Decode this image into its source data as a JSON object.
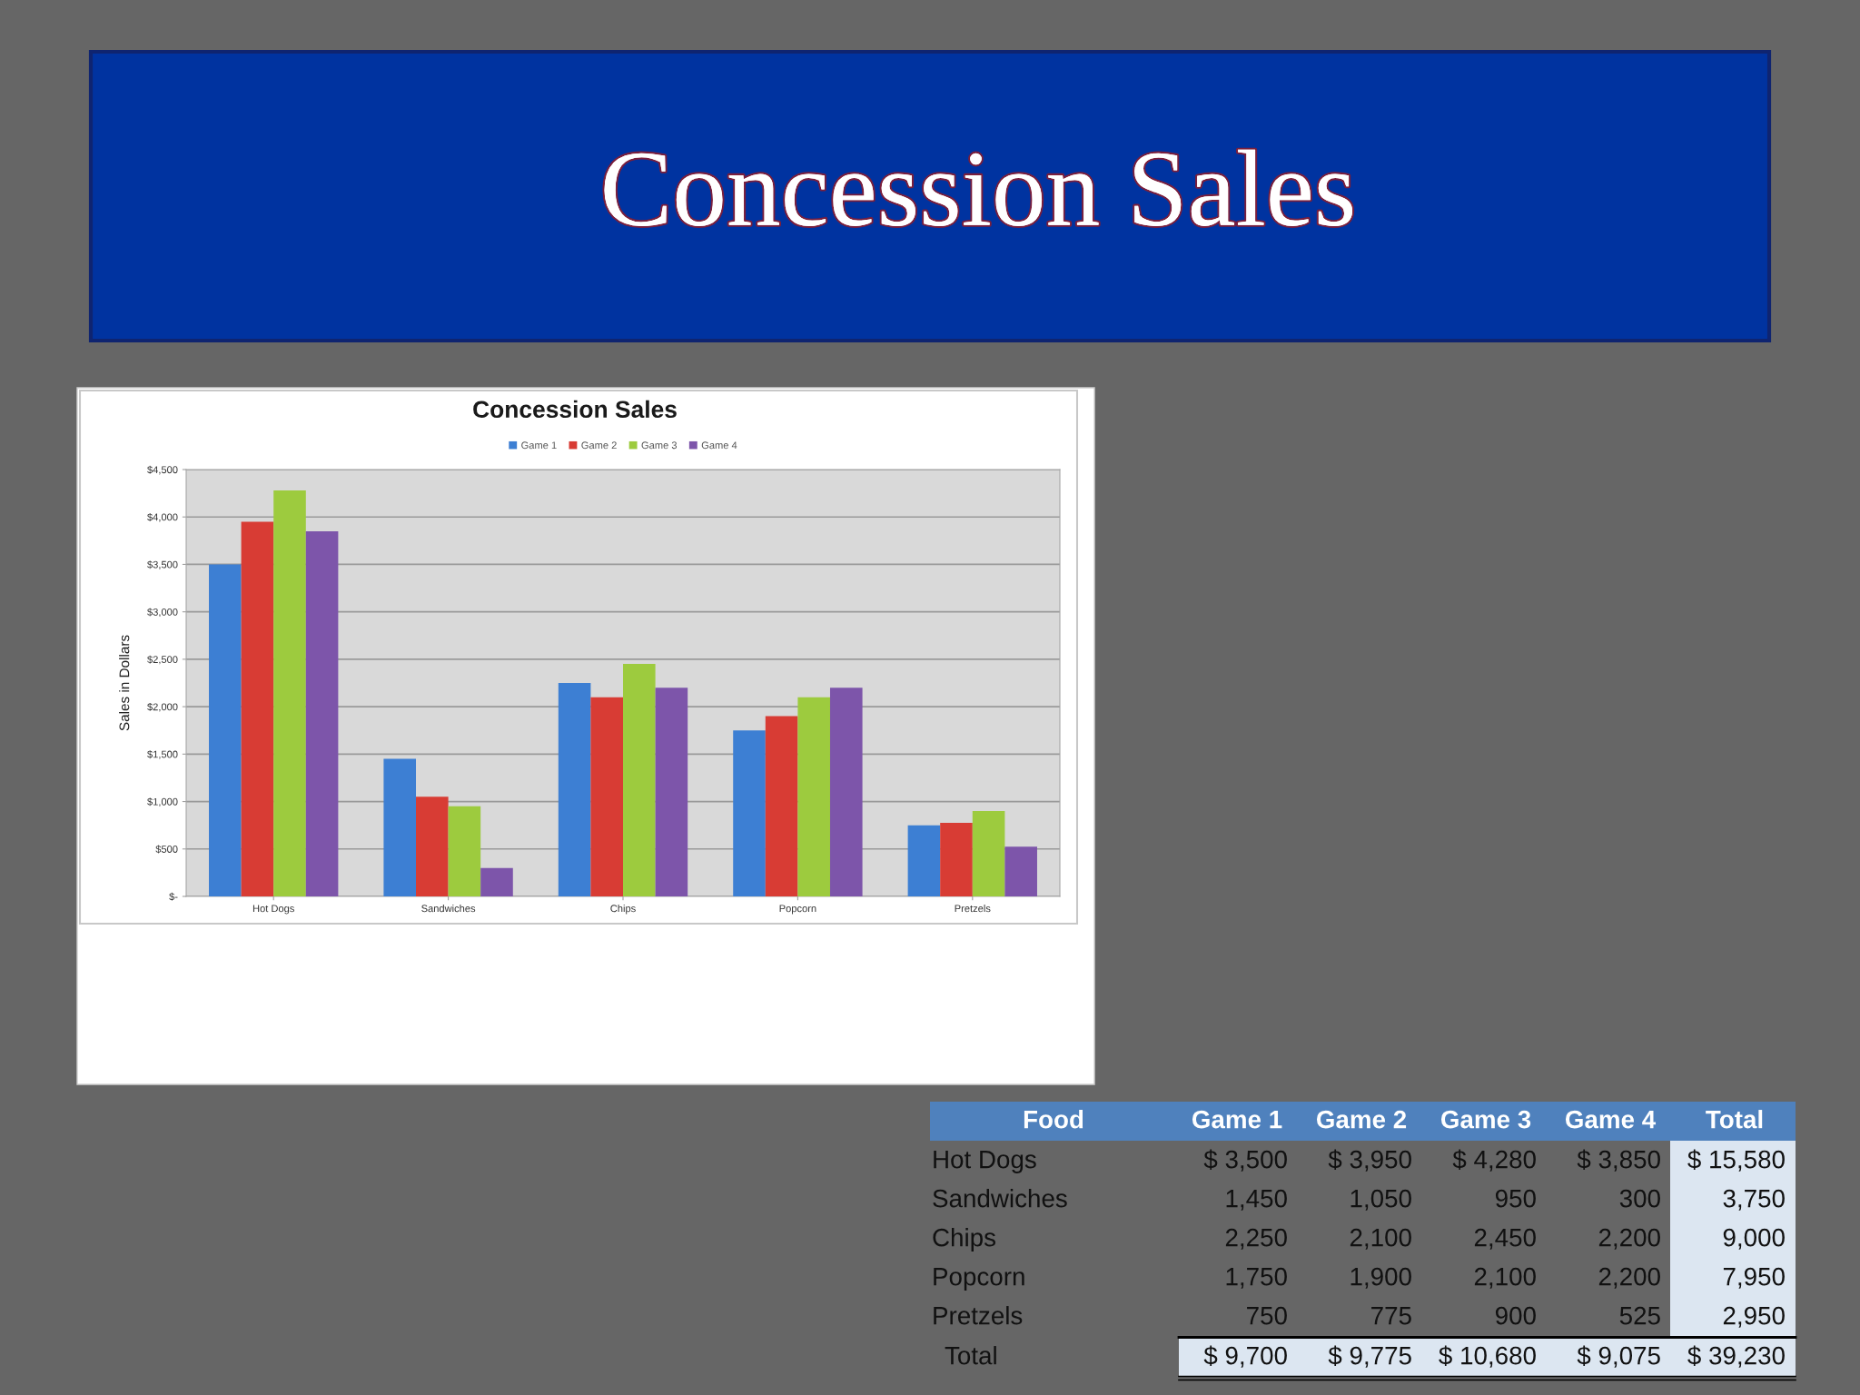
{
  "chart_data": [
    {
      "type": "bar",
      "title": "Concession Sales",
      "subtitle": "Concession Sales",
      "ylabel": "Sales in Dollars",
      "categories": [
        "Hot Dogs",
        "Sandwiches",
        "Chips",
        "Popcorn",
        "Pretzels"
      ],
      "series": [
        {
          "name": "Game 1",
          "color": "#3d7fd3",
          "values": [
            3500,
            1450,
            2250,
            1750,
            750
          ]
        },
        {
          "name": "Game 2",
          "color": "#d83c34",
          "values": [
            3950,
            1050,
            2100,
            1900,
            775
          ]
        },
        {
          "name": "Game 3",
          "color": "#9dcb3e",
          "values": [
            4280,
            950,
            2450,
            2100,
            900
          ]
        },
        {
          "name": "Game 4",
          "color": "#7d55aa",
          "values": [
            3850,
            300,
            2200,
            2200,
            525
          ]
        }
      ],
      "ylim": [
        0,
        4500
      ],
      "yticks": [
        {
          "value": 0,
          "label": "$-"
        },
        {
          "value": 500,
          "label": "$500"
        },
        {
          "value": 1000,
          "label": "$1,000"
        },
        {
          "value": 1500,
          "label": "$1,500"
        },
        {
          "value": 2000,
          "label": "$2,000"
        },
        {
          "value": 2500,
          "label": "$2,500"
        },
        {
          "value": 3000,
          "label": "$3,000"
        },
        {
          "value": 3500,
          "label": "$3,500"
        },
        {
          "value": 4000,
          "label": "$4,000"
        },
        {
          "value": 4500,
          "label": "$4,500"
        }
      ],
      "grid": "y",
      "legend": "top"
    },
    {
      "type": "other",
      "annotations": [
        "Food",
        "Game 1",
        "Game 2",
        "Game 3",
        "Game 4",
        "Total",
        "Hot Dogs",
        "$ 3,500",
        "$ 3,950",
        "$ 4,280",
        "$ 3,850",
        "$ 15,580",
        "Sandwiches",
        "1,450",
        "1,050",
        "950",
        "300",
        "3,750",
        "Chips",
        "2,250",
        "2,100",
        "2,450",
        "2,200",
        "9,000",
        "Popcorn",
        "1,750",
        "1,900",
        "2,100",
        "2,200",
        "7,950",
        "Pretzels",
        "750",
        "775",
        "900",
        "525",
        "2,950",
        "Total",
        "$ 9,700",
        "$ 9,775",
        "$ 10,680",
        "$ 9,075",
        "$ 39,230"
      ]
    }
  ]
}
